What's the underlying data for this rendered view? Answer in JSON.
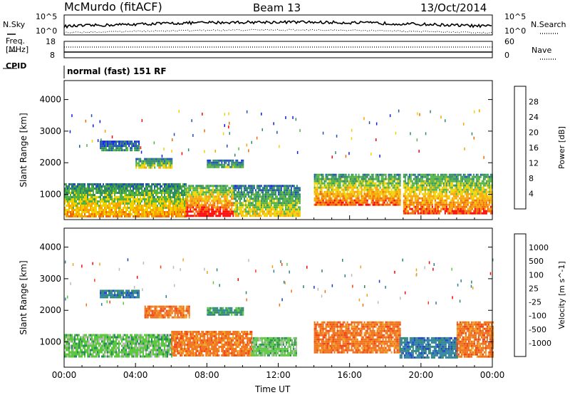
{
  "header": {
    "station": "McMurdo (fitACF)",
    "beam": "Beam 13",
    "date": "13/Oct/2014"
  },
  "summary": {
    "left_label_top": "N.Sky",
    "right_label_top": "N.Search",
    "sky_ticks": [
      "10^5",
      "10^0"
    ],
    "search_ticks": [
      "10^5",
      "10^0"
    ],
    "freq_label_line1": "Freq.",
    "freq_label_line2": "[MHz]",
    "freq_ticks": [
      "18",
      "8"
    ],
    "nave_label": "Nave",
    "nave_ticks": [
      "60",
      "0"
    ],
    "cpid_label": "CPID",
    "cpid_text": "normal (fast) 151 RF"
  },
  "chart_data": [
    {
      "type": "heatmap",
      "name": "power",
      "title": "",
      "xlabel": "Time UT",
      "ylabel": "Slant Range [km]",
      "xlim": [
        0,
        24
      ],
      "ylim": [
        200,
        4600
      ],
      "x_ticks": [
        "00:00",
        "04:00",
        "08:00",
        "12:00",
        "16:00",
        "20:00",
        "00:00"
      ],
      "y_ticks": [
        "1000",
        "2000",
        "3000",
        "4000"
      ],
      "colorbar": {
        "label": "Power [dB]",
        "ticks": [
          "28",
          "24",
          "20",
          "16",
          "12",
          "8",
          "4"
        ],
        "colors": [
          "#0a1de6",
          "#1d52b0",
          "#2f8a64",
          "#52b240",
          "#f0d200",
          "#f7a300",
          "#f06a00",
          "#ff0000"
        ]
      },
      "regions": [
        {
          "t": [
            0.0,
            6.8
          ],
          "range": [
            300,
            1350
          ],
          "mean_power_db": 20
        },
        {
          "t": [
            6.8,
            9.5
          ],
          "range": [
            300,
            1300
          ],
          "mean_power_db": 28
        },
        {
          "t": [
            9.5,
            13.2
          ],
          "range": [
            350,
            1300
          ],
          "mean_power_db": 16
        },
        {
          "t": [
            14.0,
            18.8
          ],
          "range": [
            650,
            1650
          ],
          "mean_power_db": 22
        },
        {
          "t": [
            19.0,
            24.0
          ],
          "range": [
            400,
            1650
          ],
          "mean_power_db": 24
        },
        {
          "t": [
            2.0,
            4.2
          ],
          "range": [
            2400,
            2700
          ],
          "mean_power_db": 8
        },
        {
          "t": [
            4.0,
            6.0
          ],
          "range": [
            1850,
            2150
          ],
          "mean_power_db": 16
        },
        {
          "t": [
            8.0,
            10.0
          ],
          "range": [
            1850,
            2100
          ],
          "mean_power_db": 12
        }
      ]
    },
    {
      "type": "heatmap",
      "name": "velocity",
      "title": "",
      "xlabel": "Time UT",
      "ylabel": "Slant Range [km]",
      "xlim": [
        0,
        24
      ],
      "ylim": [
        200,
        4600
      ],
      "x_ticks": [
        "00:00",
        "04:00",
        "08:00",
        "12:00",
        "16:00",
        "20:00",
        "00:00"
      ],
      "y_ticks": [
        "1000",
        "2000",
        "3000",
        "4000"
      ],
      "colorbar": {
        "label": "Velocity [m s^-1]",
        "ticks": [
          "1000",
          "500",
          "100",
          "25",
          "-25",
          "-100",
          "-500",
          "-1000"
        ],
        "colors": [
          "#1a3cc8",
          "#2a7fa0",
          "#2a8a5a",
          "#5cc840",
          "#bbbbbb",
          "#f0a020",
          "#f07018",
          "#f04010",
          "#ff0000"
        ]
      },
      "regions": [
        {
          "t": [
            0.0,
            6.0
          ],
          "range": [
            550,
            1250
          ],
          "velocity": 50
        },
        {
          "t": [
            6.0,
            10.5
          ],
          "range": [
            550,
            1350
          ],
          "velocity": -150
        },
        {
          "t": [
            10.5,
            13.0
          ],
          "range": [
            550,
            1150
          ],
          "velocity": 50
        },
        {
          "t": [
            14.0,
            18.8
          ],
          "range": [
            700,
            1650
          ],
          "velocity": -150
        },
        {
          "t": [
            18.8,
            22.0
          ],
          "range": [
            500,
            1150
          ],
          "velocity": 300
        },
        {
          "t": [
            22.0,
            24.0
          ],
          "range": [
            500,
            1650
          ],
          "velocity": -150
        },
        {
          "t": [
            2.0,
            4.2
          ],
          "range": [
            2400,
            2650
          ],
          "velocity": 300
        },
        {
          "t": [
            4.5,
            7.0
          ],
          "range": [
            1800,
            2150
          ],
          "velocity": -150
        },
        {
          "t": [
            8.0,
            10.0
          ],
          "range": [
            1850,
            2100
          ],
          "velocity": 80
        }
      ]
    }
  ]
}
